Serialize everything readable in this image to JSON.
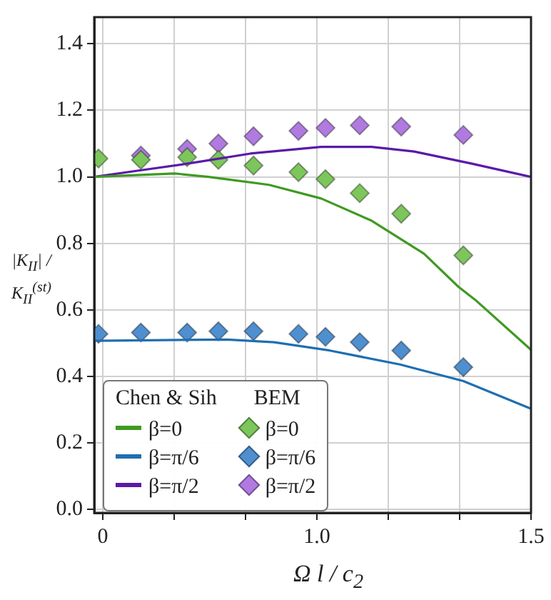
{
  "chart_data": {
    "type": "line",
    "xlabel": "Ω l / c$_{2}$",
    "ylabel": "|K$_{II}$| / K$_{II}$$^{(st)}$",
    "annotations": [
      "Chen & Sih",
      "BEM"
    ],
    "xlim": [
      0.48,
      1.5
    ],
    "ylim": [
      -0.01,
      1.48
    ],
    "xticks": [
      {
        "value": 0.5,
        "label": "0"
      },
      {
        "value": 0.667,
        "label": null
      },
      {
        "value": 0.833,
        "label": null
      },
      {
        "value": 1.0,
        "label": "1.0"
      },
      {
        "value": 1.167,
        "label": null
      },
      {
        "value": 1.333,
        "label": null
      },
      {
        "value": 1.5,
        "label": "1.5"
      }
    ],
    "yticks": [
      {
        "value": 0,
        "label": "0.0"
      },
      {
        "value": 0.2,
        "label": "0.2"
      },
      {
        "value": 0.4,
        "label": "0.4"
      },
      {
        "value": 0.6,
        "label": "0.6"
      },
      {
        "value": 0.8,
        "label": "0.8"
      },
      {
        "value": 1.0,
        "label": "1.0"
      },
      {
        "value": 1.2,
        "label": "1.2"
      },
      {
        "value": 1.4,
        "label": "1.4"
      }
    ],
    "grid": true,
    "legend": "bottom left",
    "line_style": "solid",
    "series": [
      {
        "name": "β=0",
        "color": "#3f9a22",
        "x": [
          0.48,
          0.668,
          0.747,
          0.888,
          1.01,
          1.128,
          1.25,
          1.33,
          1.37,
          1.5
        ],
        "values": [
          1.0,
          1.01,
          1.0,
          0.976,
          0.935,
          0.868,
          0.769,
          0.67,
          0.63,
          0.48
        ]
      },
      {
        "name": "β=π/6",
        "color": "#1f6fb0",
        "x": [
          0.48,
          0.79,
          0.9,
          1.03,
          1.194,
          1.342,
          1.5
        ],
        "values": [
          0.507,
          0.511,
          0.503,
          0.478,
          0.436,
          0.386,
          0.303
        ]
      },
      {
        "name": "β=π/2",
        "color": "#5a1aa8",
        "x": [
          0.48,
          0.59,
          0.7,
          0.845,
          1.01,
          1.128,
          1.227,
          1.36,
          1.5
        ],
        "values": [
          1.0,
          1.02,
          1.04,
          1.07,
          1.09,
          1.09,
          1.076,
          1.04,
          1.0
        ]
      },
      {
        "name": "β=0",
        "type": "scatter",
        "marker": "diamond",
        "color": "#7cc65c",
        "x": [
          0.49,
          0.589,
          0.697,
          0.77,
          0.852,
          0.957,
          1.02,
          1.1,
          1.197,
          1.342
        ],
        "values": [
          1.055,
          1.051,
          1.059,
          1.051,
          1.034,
          1.014,
          0.993,
          0.951,
          0.889,
          0.764
        ]
      },
      {
        "name": "β=π/6",
        "type": "scatter",
        "marker": "diamond",
        "color": "#4f8fcf",
        "x": [
          0.49,
          0.589,
          0.697,
          0.77,
          0.852,
          0.957,
          1.02,
          1.1,
          1.197,
          1.342
        ],
        "values": [
          0.528,
          0.532,
          0.532,
          0.536,
          0.536,
          0.528,
          0.519,
          0.503,
          0.478,
          0.428
        ]
      },
      {
        "name": "β=π/2",
        "type": "scatter",
        "marker": "diamond",
        "color": "#b07ae0",
        "x": [
          0.589,
          0.697,
          0.77,
          0.852,
          0.957,
          1.02,
          1.1,
          1.197,
          1.342
        ],
        "values": [
          1.064,
          1.084,
          1.1,
          1.122,
          1.138,
          1.147,
          1.155,
          1.151,
          1.126
        ]
      }
    ]
  }
}
